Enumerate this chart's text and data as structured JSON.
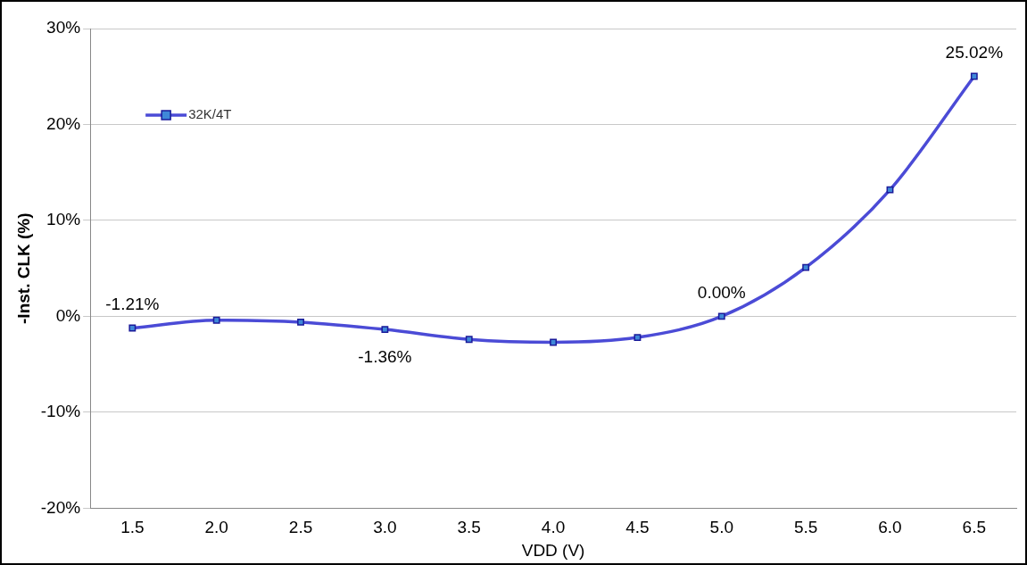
{
  "chart_data": {
    "type": "line",
    "xlabel": "VDD (V)",
    "ylabel": "-Inst. CLK (%)",
    "categories": [
      "1.5",
      "2.0",
      "2.5",
      "3.0",
      "3.5",
      "4.0",
      "4.5",
      "5.0",
      "5.5",
      "6.0",
      "6.5"
    ],
    "series": [
      {
        "name": "32K/4T",
        "color": "#4b4bd6",
        "values": [
          -1.21,
          -0.4,
          -0.6,
          -1.36,
          -2.4,
          -2.7,
          -2.2,
          0.0,
          5.1,
          13.2,
          25.02
        ],
        "value_labels": [
          "-1.21%",
          null,
          null,
          "-1.36%",
          null,
          null,
          null,
          "0.00%",
          null,
          null,
          "25.02%"
        ]
      }
    ],
    "ylim": [
      -20,
      30
    ],
    "yticks": [
      {
        "value": -20,
        "label": "-20%"
      },
      {
        "value": -10,
        "label": "-10%"
      },
      {
        "value": 0,
        "label": "0%"
      },
      {
        "value": 10,
        "label": "10%"
      },
      {
        "value": 20,
        "label": "20%"
      },
      {
        "value": 30,
        "label": "30%"
      }
    ],
    "grid": "y",
    "legend": "top left",
    "marker": "square",
    "line_style": "solid"
  }
}
